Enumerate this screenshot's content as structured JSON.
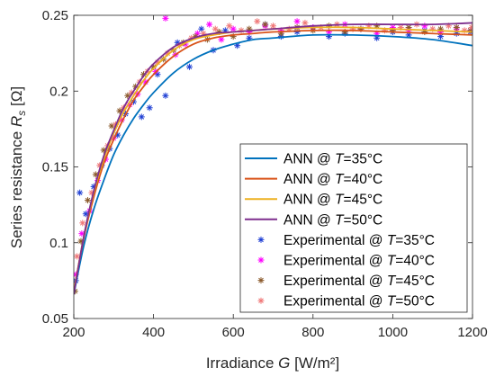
{
  "chart_data": {
    "type": "line",
    "title": "",
    "xlabel": "Irradiance",
    "xlabel_var": "G",
    "xlabel_unit": "[W/m²]",
    "ylabel": "Series resistance",
    "ylabel_var": "R",
    "ylabel_sub": "s",
    "ylabel_unit": "[Ω]",
    "xlim": [
      200,
      1200
    ],
    "ylim": [
      0.05,
      0.25
    ],
    "xticks": [
      200,
      400,
      600,
      800,
      1000,
      1200
    ],
    "yticks": [
      0.05,
      0.1,
      0.15,
      0.2,
      0.25
    ],
    "xtick_labels": [
      "200",
      "400",
      "600",
      "800",
      "1000",
      "1200"
    ],
    "ytick_labels": [
      "0.05",
      "0.1",
      "0.15",
      "0.2",
      "0.25"
    ],
    "grid": false,
    "legend_position": "bottom-right",
    "series": [
      {
        "name": "ANN @ T=35°C",
        "kind": "line",
        "color": "#0072BD",
        "x": [
          200,
          225,
          250,
          275,
          300,
          325,
          350,
          375,
          400,
          450,
          500,
          550,
          600,
          650,
          700,
          800,
          900,
          1000,
          1100,
          1200
        ],
        "y": [
          0.066,
          0.098,
          0.122,
          0.141,
          0.158,
          0.171,
          0.182,
          0.191,
          0.199,
          0.212,
          0.221,
          0.227,
          0.231,
          0.234,
          0.235,
          0.237,
          0.237,
          0.236,
          0.234,
          0.23
        ]
      },
      {
        "name": "ANN @ T=40°C",
        "kind": "line",
        "color": "#D95319",
        "x": [
          200,
          225,
          250,
          275,
          300,
          325,
          350,
          375,
          400,
          450,
          500,
          550,
          600,
          650,
          700,
          800,
          900,
          1000,
          1100,
          1200
        ],
        "y": [
          0.068,
          0.103,
          0.13,
          0.152,
          0.168,
          0.182,
          0.194,
          0.203,
          0.211,
          0.223,
          0.231,
          0.235,
          0.237,
          0.238,
          0.239,
          0.24,
          0.24,
          0.239,
          0.238,
          0.237
        ]
      },
      {
        "name": "ANN @ T=45°C",
        "kind": "line",
        "color": "#EDB120",
        "x": [
          200,
          225,
          250,
          275,
          300,
          325,
          350,
          375,
          400,
          450,
          500,
          550,
          600,
          650,
          700,
          800,
          900,
          1000,
          1100,
          1200
        ],
        "y": [
          0.067,
          0.104,
          0.133,
          0.155,
          0.172,
          0.186,
          0.197,
          0.207,
          0.215,
          0.227,
          0.234,
          0.237,
          0.239,
          0.24,
          0.241,
          0.242,
          0.242,
          0.241,
          0.24,
          0.239
        ]
      },
      {
        "name": "ANN @ T=50°C",
        "kind": "line",
        "color": "#7E2F8E",
        "x": [
          200,
          225,
          250,
          275,
          300,
          325,
          350,
          375,
          400,
          450,
          500,
          550,
          600,
          650,
          700,
          800,
          900,
          1000,
          1100,
          1200
        ],
        "y": [
          0.066,
          0.104,
          0.134,
          0.157,
          0.174,
          0.189,
          0.2,
          0.21,
          0.218,
          0.229,
          0.235,
          0.238,
          0.239,
          0.24,
          0.241,
          0.243,
          0.244,
          0.244,
          0.244,
          0.245
        ]
      },
      {
        "name": "Experimental @ T=35°C",
        "kind": "scatter",
        "marker": "asterisk",
        "color": "#1F3FD4",
        "x": [
          205,
          215,
          230,
          250,
          270,
          290,
          310,
          330,
          350,
          370,
          390,
          410,
          430,
          460,
          490,
          520,
          550,
          580,
          610,
          640,
          680,
          720,
          760,
          800,
          840,
          880,
          920,
          960,
          1000,
          1040,
          1080,
          1120,
          1160,
          1195
        ],
        "y": [
          0.075,
          0.133,
          0.119,
          0.137,
          0.151,
          0.162,
          0.171,
          0.185,
          0.193,
          0.183,
          0.189,
          0.211,
          0.197,
          0.232,
          0.216,
          0.241,
          0.227,
          0.24,
          0.23,
          0.235,
          0.244,
          0.236,
          0.239,
          0.242,
          0.236,
          0.238,
          0.241,
          0.235,
          0.239,
          0.237,
          0.24,
          0.236,
          0.238,
          0.239
        ]
      },
      {
        "name": "Experimental @ T=40°C",
        "kind": "scatter",
        "marker": "asterisk",
        "color": "#FF00FF",
        "x": [
          205,
          220,
          240,
          260,
          280,
          300,
          320,
          340,
          360,
          380,
          405,
          430,
          455,
          480,
          510,
          540,
          570,
          600,
          640,
          680,
          720,
          760,
          800,
          840,
          880,
          920,
          960,
          1000,
          1040,
          1080,
          1120,
          1160,
          1195
        ],
        "y": [
          0.079,
          0.106,
          0.121,
          0.141,
          0.155,
          0.169,
          0.181,
          0.191,
          0.198,
          0.206,
          0.213,
          0.248,
          0.224,
          0.231,
          0.238,
          0.244,
          0.234,
          0.241,
          0.239,
          0.243,
          0.24,
          0.246,
          0.242,
          0.239,
          0.244,
          0.241,
          0.238,
          0.242,
          0.24,
          0.243,
          0.239,
          0.241,
          0.24
        ]
      },
      {
        "name": "Experimental @ T=45°C",
        "kind": "scatter",
        "marker": "asterisk",
        "color": "#8B5A2B",
        "x": [
          203,
          218,
          235,
          255,
          275,
          295,
          315,
          335,
          355,
          375,
          400,
          425,
          450,
          475,
          505,
          535,
          565,
          600,
          640,
          680,
          720,
          760,
          800,
          840,
          880,
          920,
          960,
          1000,
          1040,
          1080,
          1120,
          1160,
          1195
        ],
        "y": [
          0.068,
          0.101,
          0.128,
          0.145,
          0.161,
          0.177,
          0.187,
          0.197,
          0.203,
          0.211,
          0.216,
          0.221,
          0.227,
          0.232,
          0.236,
          0.234,
          0.239,
          0.236,
          0.241,
          0.244,
          0.238,
          0.242,
          0.24,
          0.243,
          0.239,
          0.241,
          0.243,
          0.24,
          0.242,
          0.239,
          0.241,
          0.242,
          0.24
        ]
      },
      {
        "name": "Experimental @ T=50°C",
        "kind": "scatter",
        "marker": "asterisk",
        "color": "#F07878",
        "x": [
          208,
          222,
          245,
          265,
          285,
          305,
          325,
          345,
          365,
          385,
          410,
          435,
          465,
          495,
          525,
          555,
          590,
          620,
          660,
          700,
          740,
          780,
          820,
          860,
          900,
          940,
          980,
          1020,
          1060,
          1100,
          1140,
          1180,
          1198
        ],
        "y": [
          0.091,
          0.113,
          0.133,
          0.151,
          0.164,
          0.178,
          0.189,
          0.199,
          0.206,
          0.213,
          0.219,
          0.225,
          0.23,
          0.235,
          0.238,
          0.241,
          0.243,
          0.24,
          0.246,
          0.243,
          0.241,
          0.245,
          0.242,
          0.244,
          0.241,
          0.243,
          0.24,
          0.242,
          0.244,
          0.241,
          0.243,
          0.24,
          0.242
        ]
      }
    ]
  }
}
